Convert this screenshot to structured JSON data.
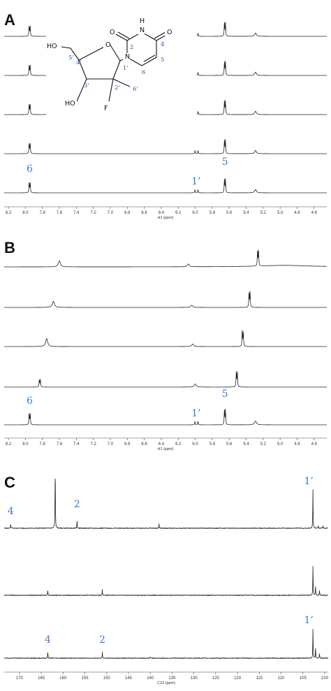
{
  "chart_data": [
    {
      "type": "line",
      "panel": "A",
      "xlabel": "H1 (ppm)",
      "xlim": [
        8.25,
        4.45
      ],
      "ticks": [
        8.2,
        8.0,
        7.8,
        7.6,
        7.4,
        7.2,
        7.0,
        6.8,
        6.6,
        6.4,
        6.2,
        6.0,
        5.8,
        5.6,
        5.4,
        5.2,
        5.0,
        4.8,
        4.6
      ],
      "tick_labels": [
        "8.2",
        "8.0",
        "7.8",
        "7.6",
        "7.4",
        "7.2",
        "7.0",
        "6.8",
        "6.6",
        "6.4",
        "6.2",
        "6.0",
        "5.8",
        "5.6",
        "5.4",
        "5.2",
        "5.0",
        "4.8",
        "4.6"
      ],
      "series": [
        {
          "peaks": [
            {
              "ppm": 7.95,
              "height": 0.72,
              "type": "doublet",
              "sep": 0.012
            },
            {
              "ppm": 5.985,
              "height": 0.22,
              "type": "doublet",
              "sep": 0.035
            },
            {
              "ppm": 5.65,
              "height": 0.95,
              "type": "doublet",
              "sep": 0.012
            },
            {
              "ppm": 5.29,
              "height": 0.12,
              "type": "broad"
            }
          ]
        },
        {
          "peaks": [
            {
              "ppm": 7.95,
              "height": 0.72,
              "type": "doublet",
              "sep": 0.012
            },
            {
              "ppm": 5.985,
              "height": 0.22,
              "type": "doublet",
              "sep": 0.035
            },
            {
              "ppm": 5.65,
              "height": 0.95,
              "type": "doublet",
              "sep": 0.012
            },
            {
              "ppm": 5.29,
              "height": 0.12,
              "type": "broad"
            }
          ]
        },
        {
          "peaks": [
            {
              "ppm": 7.95,
              "height": 0.72,
              "type": "doublet",
              "sep": 0.012
            },
            {
              "ppm": 5.985,
              "height": 0.22,
              "type": "doublet",
              "sep": 0.035
            },
            {
              "ppm": 5.65,
              "height": 0.95,
              "type": "doublet",
              "sep": 0.012
            },
            {
              "ppm": 5.29,
              "height": 0.12,
              "type": "broad"
            }
          ]
        },
        {
          "peaks": [
            {
              "ppm": 7.95,
              "height": 0.72,
              "type": "doublet",
              "sep": 0.012
            },
            {
              "ppm": 5.985,
              "height": 0.22,
              "type": "doublet",
              "sep": 0.035
            },
            {
              "ppm": 5.65,
              "height": 0.95,
              "type": "doublet",
              "sep": 0.012
            },
            {
              "ppm": 5.29,
              "height": 0.12,
              "type": "broad"
            }
          ]
        },
        {
          "peaks": [
            {
              "ppm": 7.95,
              "height": 0.72,
              "type": "doublet",
              "sep": 0.012
            },
            {
              "ppm": 5.985,
              "height": 0.22,
              "type": "doublet",
              "sep": 0.035
            },
            {
              "ppm": 5.65,
              "height": 0.95,
              "type": "doublet",
              "sep": 0.012
            },
            {
              "ppm": 5.29,
              "height": 0.12,
              "type": "broad"
            }
          ]
        }
      ],
      "annotations": [
        {
          "text": "6",
          "ppm": 7.95
        },
        {
          "text": "1’",
          "ppm": 5.99
        },
        {
          "text": "5",
          "ppm": 5.65
        }
      ],
      "molecule": {
        "atoms": [
          "O",
          "N",
          "H",
          "O",
          "N",
          "HO",
          "O",
          "HO",
          "F"
        ],
        "locants": [
          "2",
          "4",
          "5",
          "6",
          "1’",
          "2’",
          "3’",
          "4’",
          "5’",
          "6’"
        ]
      }
    },
    {
      "type": "line",
      "panel": "B",
      "xlabel": "H1 (ppm)",
      "xlim": [
        8.25,
        4.45
      ],
      "ticks": [
        8.2,
        8.0,
        7.8,
        7.6,
        7.4,
        7.2,
        7.0,
        6.8,
        6.6,
        6.4,
        6.2,
        6.0,
        5.8,
        5.6,
        5.4,
        5.2,
        5.0,
        4.8,
        4.6
      ],
      "tick_labels": [
        "8.2",
        "8.0",
        "7.8",
        "7.6",
        "7.4",
        "7.2",
        "7.0",
        "6.8",
        "6.6",
        "6.4",
        "6.2",
        "6.0",
        "5.8",
        "5.6",
        "5.4",
        "5.2",
        "5.0",
        "4.8",
        "4.6"
      ],
      "series": [
        {
          "peaks": [
            {
              "ppm": 7.6,
              "height": 0.2,
              "type": "broad"
            },
            {
              "ppm": 6.08,
              "height": 0.09,
              "type": "broad"
            },
            {
              "ppm": 5.26,
              "height": 1.0,
              "type": "doublet",
              "sep": 0.012
            },
            {
              "ppm": 4.95,
              "height": 0.05,
              "type": "hump"
            }
          ]
        },
        {
          "peaks": [
            {
              "ppm": 7.67,
              "height": 0.2,
              "type": "broad"
            },
            {
              "ppm": 6.04,
              "height": 0.07,
              "type": "broad"
            },
            {
              "ppm": 5.36,
              "height": 0.98,
              "type": "doublet",
              "sep": 0.012
            }
          ]
        },
        {
          "peaks": [
            {
              "ppm": 7.75,
              "height": 0.26,
              "type": "broad"
            },
            {
              "ppm": 6.03,
              "height": 0.08,
              "type": "broad"
            },
            {
              "ppm": 5.44,
              "height": 0.98,
              "type": "doublet",
              "sep": 0.012
            }
          ]
        },
        {
          "peaks": [
            {
              "ppm": 7.83,
              "height": 0.48,
              "type": "doublet",
              "sep": 0.012
            },
            {
              "ppm": 6.0,
              "height": 0.1,
              "type": "broad"
            },
            {
              "ppm": 5.51,
              "height": 0.98,
              "type": "doublet",
              "sep": 0.012
            }
          ]
        },
        {
          "peaks": [
            {
              "ppm": 7.95,
              "height": 0.72,
              "type": "doublet",
              "sep": 0.012
            },
            {
              "ppm": 5.985,
              "height": 0.22,
              "type": "doublet",
              "sep": 0.035
            },
            {
              "ppm": 5.65,
              "height": 0.95,
              "type": "doublet",
              "sep": 0.012
            },
            {
              "ppm": 5.29,
              "height": 0.12,
              "type": "broad"
            }
          ]
        }
      ],
      "annotations": [
        {
          "text": "6",
          "ppm": 7.95
        },
        {
          "text": "1’",
          "ppm": 5.99
        },
        {
          "text": "5",
          "ppm": 5.65
        }
      ]
    },
    {
      "type": "line",
      "panel": "C",
      "xlabel": "C13 (ppm)",
      "xlim": [
        173.5,
        99.2
      ],
      "ticks": [
        170,
        165,
        160,
        155,
        150,
        145,
        140,
        135,
        130,
        125,
        120,
        115,
        110,
        105,
        100
      ],
      "tick_labels": [
        "170",
        "165",
        "160",
        "155",
        "150",
        "145",
        "140",
        "135",
        "130",
        "125",
        "120",
        "115",
        "110",
        "105",
        "100"
      ],
      "series": [
        {
          "peaks": [
            {
              "ppm": 172.0,
              "height": 0.06
            },
            {
              "ppm": 161.8,
              "height": 1.0
            },
            {
              "ppm": 156.8,
              "height": 0.12
            },
            {
              "ppm": 138.0,
              "height": 0.07
            },
            {
              "ppm": 102.7,
              "height": 0.6
            },
            {
              "ppm": 101.5,
              "height": 0.04
            },
            {
              "ppm": 100.4,
              "height": 0.04
            }
          ]
        },
        {
          "peaks": [
            {
              "ppm": 163.5,
              "height": 0.09
            },
            {
              "ppm": 151.0,
              "height": 0.09
            },
            {
              "ppm": 102.7,
              "height": 0.45
            },
            {
              "ppm": 102.1,
              "height": 0.15
            },
            {
              "ppm": 101.2,
              "height": 0.08
            }
          ]
        },
        {
          "peaks": [
            {
              "ppm": 163.5,
              "height": 0.1
            },
            {
              "ppm": 151.0,
              "height": 0.1
            },
            {
              "ppm": 140.0,
              "height": 0.02
            },
            {
              "ppm": 102.7,
              "height": 0.45
            },
            {
              "ppm": 102.1,
              "height": 0.18
            },
            {
              "ppm": 101.2,
              "height": 0.08
            }
          ]
        }
      ],
      "annotations": [
        {
          "text": "4",
          "ppm": 172.0,
          "spectrum": 0
        },
        {
          "text": "2",
          "ppm": 156.8,
          "spectrum": 0
        },
        {
          "text": "1’",
          "ppm": 102.7,
          "spectrum": 0
        },
        {
          "text": "4",
          "ppm": 163.5,
          "spectrum": 2
        },
        {
          "text": "2",
          "ppm": 151.0,
          "spectrum": 2
        },
        {
          "text": "1’",
          "ppm": 102.7,
          "spectrum": 2
        }
      ]
    }
  ],
  "colors": {
    "annotation": "#3a7bd5",
    "spectrum": "#222222"
  }
}
